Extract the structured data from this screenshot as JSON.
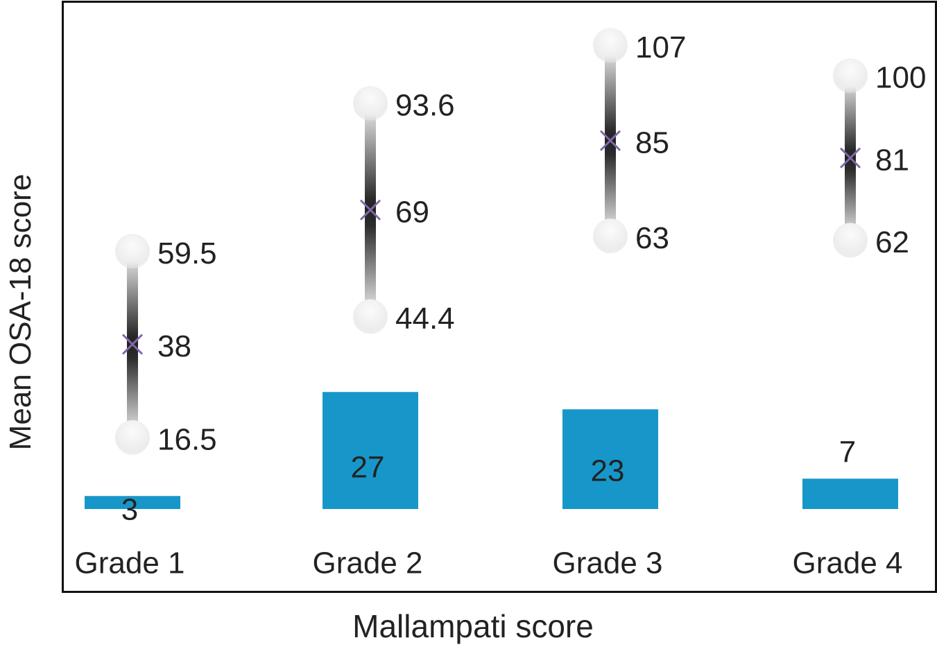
{
  "chart_data": {
    "type": "bar",
    "title": "",
    "xlabel": "Mallampati score",
    "ylabel": "Mean OSA-18 score",
    "categories": [
      "Grade 1",
      "Grade 2",
      "Grade 3",
      "Grade 4"
    ],
    "values": [
      3,
      27,
      23,
      7
    ],
    "ranges": [
      {
        "min": 16.5,
        "mean": 38,
        "max": 59.5
      },
      {
        "min": 44.4,
        "mean": 69,
        "max": 93.6
      },
      {
        "min": 63,
        "mean": 85,
        "max": 107
      },
      {
        "min": 62,
        "mean": 81,
        "max": 100
      }
    ],
    "range_labels": [
      {
        "min": "16.5",
        "mean": "38",
        "max": "59.5"
      },
      {
        "min": "44.4",
        "mean": "69",
        "max": "93.6"
      },
      {
        "min": "63",
        "mean": "85",
        "max": "107"
      },
      {
        "min": "62",
        "mean": "81",
        "max": "100"
      }
    ],
    "value_labels": [
      "3",
      "27",
      "23",
      "7"
    ],
    "grid": false,
    "colors": {
      "bar": "#1797c9",
      "mean_marker": "#7f68a8",
      "text": "#222222"
    }
  }
}
